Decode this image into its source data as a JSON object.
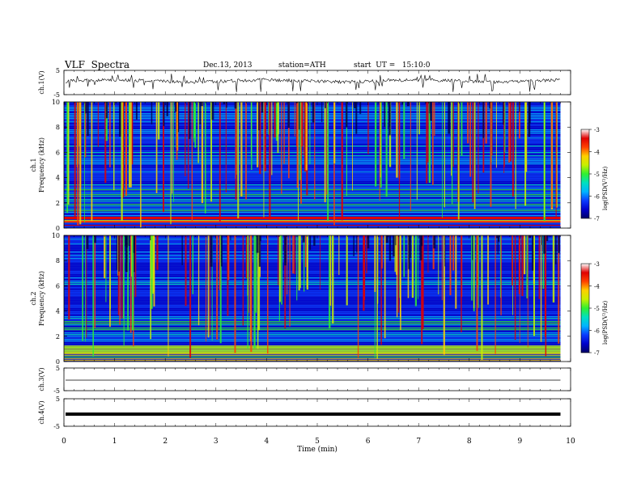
{
  "header": {
    "title": "VLF  Spectra",
    "date": "Dec.13, 2013",
    "station": "station=ATH",
    "start": "start  UT =   15:10:0"
  },
  "colors": {
    "spectrogram_scale": [
      "#000066",
      "#0000cc",
      "#0a3cff",
      "#00b4ff",
      "#00e0c0",
      "#30f030",
      "#c8f000",
      "#ffd000",
      "#ff4000",
      "#e00000",
      "#ffffff"
    ]
  },
  "chart_data": [
    {
      "type": "line",
      "id": "ch1",
      "ylabel": "ch.1(V)",
      "ylim": [
        -5,
        5
      ],
      "yticks": [
        "5",
        "-5"
      ],
      "description_values": {
        "baseline": 0.2,
        "noise_amplitude": 1.0,
        "spike_amplitude": -3.0
      }
    },
    {
      "type": "heatmap",
      "id": "ch1-spectrogram",
      "ylabel": "ch.1\nFrequency  (kHz)",
      "ylim": [
        0,
        10
      ],
      "yticks": [
        "0",
        "2",
        "4",
        "6",
        "8",
        "10"
      ],
      "colorbar": {
        "label": "log(PSD(V²/Hz)",
        "range": [
          -7,
          -3
        ],
        "ticks": [
          "-3",
          "-4",
          "-5",
          "-6",
          "-7"
        ]
      }
    },
    {
      "type": "heatmap",
      "id": "ch2-spectrogram",
      "ylabel": "ch.2\nFrequency  (kHz)",
      "ylim": [
        0,
        10
      ],
      "yticks": [
        "0",
        "2",
        "4",
        "6",
        "8",
        "10"
      ],
      "colorbar": {
        "label": "log(PSD(V²/Hz)",
        "range": [
          -7,
          -3
        ],
        "ticks": [
          "-3",
          "-4",
          "-5",
          "-6",
          "-7"
        ]
      }
    },
    {
      "type": "line",
      "id": "ch3",
      "ylabel": "ch.3(V)",
      "ylim": [
        -5,
        5
      ],
      "yticks": [
        "5",
        "-5"
      ],
      "description_values": {
        "baseline": -0.2
      }
    },
    {
      "type": "line",
      "id": "ch4",
      "ylabel": "ch.4(V)",
      "ylim": [
        -5,
        5
      ],
      "yticks": [
        "5",
        "-5"
      ],
      "description_values": {
        "baseline": -0.2
      }
    }
  ],
  "xaxis": {
    "label": "Time  (min)",
    "range": [
      0,
      10
    ],
    "ticks": [
      "0",
      "1",
      "2",
      "3",
      "4",
      "5",
      "6",
      "7",
      "8",
      "9",
      "10"
    ],
    "data_end": 9.8
  }
}
